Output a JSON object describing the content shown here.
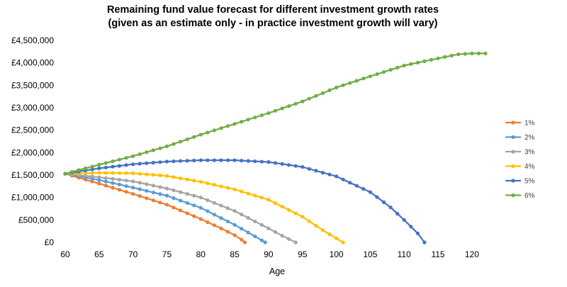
{
  "chart_data": {
    "type": "line",
    "title": "Remaining fund value forecast for different investment growth rates",
    "subtitle": "(given as an estimate only - in practice investment growth will vary)",
    "xlabel": "Age",
    "ylabel": "",
    "xlim": [
      60,
      122
    ],
    "ylim": [
      0,
      4500000
    ],
    "x_ticks": [
      "60",
      "65",
      "70",
      "75",
      "80",
      "85",
      "90",
      "95",
      "100",
      "105",
      "110",
      "115",
      "120"
    ],
    "x_tick_values": [
      60,
      65,
      70,
      75,
      80,
      85,
      90,
      95,
      100,
      105,
      110,
      115,
      120
    ],
    "y_ticks": [
      "£0",
      "£500,000",
      "£1,000,000",
      "£1,500,000",
      "£2,000,000",
      "£2,500,000",
      "£3,000,000",
      "£3,500,000",
      "£4,000,000",
      "£4,500,000"
    ],
    "y_tick_values": [
      0,
      500000,
      1000000,
      1500000,
      2000000,
      2500000,
      3000000,
      3500000,
      4000000,
      4500000
    ],
    "grid": false,
    "legend_position": "right",
    "marker": "circle",
    "series": [
      {
        "name": "1%",
        "color": "#ED7D31",
        "x": [
          60,
          65,
          70,
          75,
          80,
          83,
          85,
          86,
          86.5
        ],
        "y": [
          1530000,
          1310000,
          1080000,
          840000,
          520000,
          310000,
          160000,
          60000,
          0
        ]
      },
      {
        "name": "2%",
        "color": "#5B9BD5",
        "x": [
          60,
          65,
          70,
          75,
          80,
          85,
          87,
          88.5,
          89.5
        ],
        "y": [
          1530000,
          1390000,
          1220000,
          1040000,
          770000,
          390000,
          220000,
          90000,
          0
        ]
      },
      {
        "name": "3%",
        "color": "#A5A5A5",
        "x": [
          60,
          65,
          70,
          75,
          80,
          85,
          90,
          92,
          94
        ],
        "y": [
          1530000,
          1450000,
          1360000,
          1200000,
          1000000,
          700000,
          310000,
          150000,
          0
        ]
      },
      {
        "name": "4%",
        "color": "#FFC000",
        "x": [
          60,
          65,
          70,
          75,
          80,
          85,
          90,
          95,
          98,
          100,
          101
        ],
        "y": [
          1530000,
          1550000,
          1540000,
          1480000,
          1350000,
          1180000,
          950000,
          570000,
          270000,
          90000,
          0
        ]
      },
      {
        "name": "5%",
        "color": "#4472C4",
        "x": [
          60,
          65,
          70,
          75,
          80,
          85,
          90,
          95,
          100,
          105,
          108,
          110,
          112,
          113
        ],
        "y": [
          1530000,
          1650000,
          1740000,
          1800000,
          1830000,
          1830000,
          1790000,
          1680000,
          1470000,
          1120000,
          780000,
          500000,
          200000,
          0
        ]
      },
      {
        "name": "6%",
        "color": "#70AD47",
        "x": [
          60,
          65,
          70,
          75,
          80,
          85,
          90,
          95,
          100,
          105,
          110,
          115,
          118,
          120,
          122
        ],
        "y": [
          1530000,
          1730000,
          1920000,
          2140000,
          2400000,
          2640000,
          2880000,
          3140000,
          3450000,
          3700000,
          3940000,
          4100000,
          4190000,
          4210000,
          4210000
        ]
      }
    ]
  }
}
